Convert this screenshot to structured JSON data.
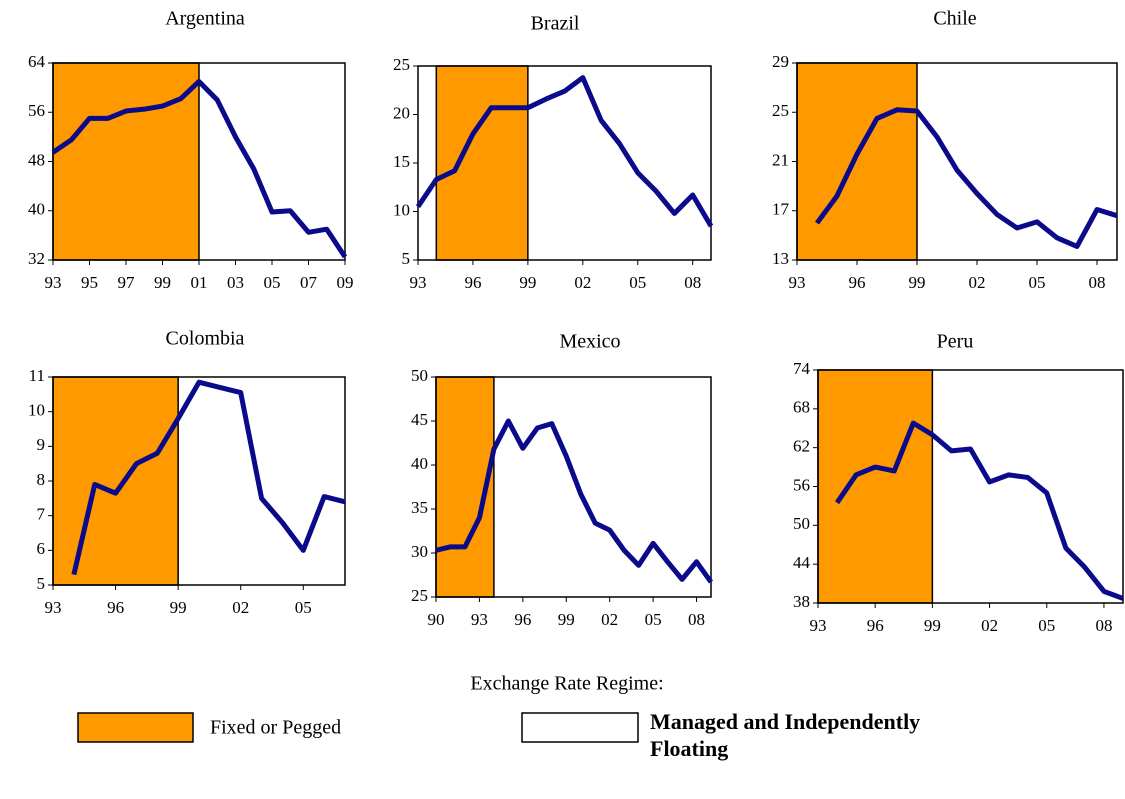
{
  "chart_data": [
    {
      "type": "line",
      "title": "Argentina",
      "line_color": "#0a0a8a",
      "shade_color": "#ff9900",
      "shaded_x": [
        1993,
        2001
      ],
      "x": [
        1993,
        1994,
        1995,
        1996,
        1997,
        1998,
        1999,
        2000,
        2001,
        2002,
        2003,
        2004,
        2005,
        2006,
        2007,
        2008,
        2009
      ],
      "values": [
        49.5,
        51.5,
        55,
        55,
        56.2,
        56.5,
        57,
        58.2,
        61,
        58,
        52,
        46.8,
        39.8,
        40,
        36.5,
        37,
        32.5
      ],
      "xlim": [
        1993,
        2009
      ],
      "ylim": [
        32,
        64
      ],
      "yticks": [
        32,
        40,
        48,
        56,
        64
      ],
      "xticks": [
        {
          "value": 1993,
          "label": "93"
        },
        {
          "value": 1995,
          "label": "95"
        },
        {
          "value": 1997,
          "label": "97"
        },
        {
          "value": 1999,
          "label": "99"
        },
        {
          "value": 2001,
          "label": "01"
        },
        {
          "value": 2003,
          "label": "03"
        },
        {
          "value": 2005,
          "label": "05"
        },
        {
          "value": 2007,
          "label": "07"
        },
        {
          "value": 2009,
          "label": "09"
        }
      ]
    },
    {
      "type": "line",
      "title": "Brazil",
      "line_color": "#0a0a8a",
      "shade_color": "#ff9900",
      "shaded_x": [
        1994,
        1999
      ],
      "x": [
        1993,
        1994,
        1995,
        1996,
        1997,
        1998,
        1999,
        2000,
        2001,
        2002,
        2003,
        2004,
        2005,
        2006,
        2007,
        2008,
        2009
      ],
      "values": [
        10.5,
        13.3,
        14.2,
        18,
        20.7,
        20.7,
        20.7,
        21.6,
        22.4,
        23.8,
        19.4,
        17,
        14,
        12.1,
        9.8,
        11.7,
        8.5
      ],
      "xlim": [
        1993,
        2009
      ],
      "ylim": [
        5,
        25
      ],
      "yticks": [
        5,
        10,
        15,
        20,
        25
      ],
      "xticks": [
        {
          "value": 1993,
          "label": "93"
        },
        {
          "value": 1996,
          "label": "96"
        },
        {
          "value": 1999,
          "label": "99"
        },
        {
          "value": 2002,
          "label": "02"
        },
        {
          "value": 2005,
          "label": "05"
        },
        {
          "value": 2008,
          "label": "08"
        }
      ]
    },
    {
      "type": "line",
      "title": "Chile",
      "line_color": "#0a0a8a",
      "shade_color": "#ff9900",
      "shaded_x": [
        1993,
        1999
      ],
      "x": [
        1994,
        1995,
        1996,
        1997,
        1998,
        1999,
        2000,
        2001,
        2002,
        2003,
        2004,
        2005,
        2006,
        2007,
        2008,
        2009
      ],
      "values": [
        16,
        18.2,
        21.6,
        24.5,
        25.2,
        25.1,
        23,
        20.3,
        18.4,
        16.7,
        15.6,
        16.1,
        14.8,
        14.1,
        17.1,
        16.6
      ],
      "xlim": [
        1993,
        2009
      ],
      "ylim": [
        13,
        29
      ],
      "yticks": [
        13,
        17,
        21,
        25,
        29
      ],
      "xticks": [
        {
          "value": 1993,
          "label": "93"
        },
        {
          "value": 1996,
          "label": "96"
        },
        {
          "value": 1999,
          "label": "99"
        },
        {
          "value": 2002,
          "label": "02"
        },
        {
          "value": 2005,
          "label": "05"
        },
        {
          "value": 2008,
          "label": "08"
        }
      ]
    },
    {
      "type": "line",
      "title": "Colombia",
      "line_color": "#0a0a8a",
      "shade_color": "#ff9900",
      "shaded_x": [
        1993,
        1999
      ],
      "x": [
        1994,
        1995,
        1996,
        1997,
        1998,
        1999,
        2000,
        2001,
        2002,
        2003,
        2004,
        2005,
        2006,
        2007
      ],
      "values": [
        5.3,
        7.9,
        7.65,
        8.5,
        8.8,
        9.8,
        10.85,
        10.7,
        10.55,
        7.5,
        6.8,
        6,
        7.55,
        7.4
      ],
      "xlim": [
        1993,
        2007
      ],
      "ylim": [
        5,
        11
      ],
      "yticks": [
        5,
        6,
        7,
        8,
        9,
        10,
        11
      ],
      "xticks": [
        {
          "value": 1993,
          "label": "93"
        },
        {
          "value": 1996,
          "label": "96"
        },
        {
          "value": 1999,
          "label": "99"
        },
        {
          "value": 2002,
          "label": "02"
        },
        {
          "value": 2005,
          "label": "05"
        }
      ]
    },
    {
      "type": "line",
      "title": "Mexico",
      "line_color": "#0a0a8a",
      "shade_color": "#ff9900",
      "shaded_x": [
        1990,
        1994
      ],
      "x": [
        1990,
        1991,
        1992,
        1993,
        1994,
        1995,
        1996,
        1997,
        1998,
        1999,
        2000,
        2001,
        2002,
        2003,
        2004,
        2005,
        2006,
        2007,
        2008,
        2009
      ],
      "values": [
        30.3,
        30.7,
        30.7,
        34,
        41.8,
        45,
        41.9,
        44.2,
        44.7,
        41,
        36.7,
        33.4,
        32.6,
        30.3,
        28.6,
        31.1,
        29,
        27,
        29,
        26.7
      ],
      "xlim": [
        1990,
        2009
      ],
      "ylim": [
        25,
        50
      ],
      "yticks": [
        25,
        30,
        35,
        40,
        45,
        50
      ],
      "xticks": [
        {
          "value": 1990,
          "label": "90"
        },
        {
          "value": 1993,
          "label": "93"
        },
        {
          "value": 1996,
          "label": "96"
        },
        {
          "value": 1999,
          "label": "99"
        },
        {
          "value": 2002,
          "label": "02"
        },
        {
          "value": 2005,
          "label": "05"
        },
        {
          "value": 2008,
          "label": "08"
        }
      ]
    },
    {
      "type": "line",
      "title": "Peru",
      "line_color": "#0a0a8a",
      "shade_color": "#ff9900",
      "shaded_x": [
        1993,
        1999
      ],
      "x": [
        1994,
        1995,
        1996,
        1997,
        1998,
        1999,
        2000,
        2001,
        2002,
        2003,
        2004,
        2005,
        2006,
        2007,
        2008,
        2009
      ],
      "values": [
        53.5,
        57.8,
        59,
        58.4,
        65.8,
        64,
        61.5,
        61.8,
        56.7,
        57.8,
        57.4,
        55,
        46.5,
        43.5,
        39.8,
        38.7
      ],
      "xlim": [
        1993,
        2009
      ],
      "ylim": [
        38,
        74
      ],
      "yticks": [
        38,
        44,
        50,
        56,
        62,
        68,
        74
      ],
      "xticks": [
        {
          "value": 1993,
          "label": "93"
        },
        {
          "value": 1996,
          "label": "96"
        },
        {
          "value": 1999,
          "label": "99"
        },
        {
          "value": 2002,
          "label": "02"
        },
        {
          "value": 2005,
          "label": "05"
        },
        {
          "value": 2008,
          "label": "08"
        }
      ]
    }
  ],
  "legend": {
    "title": "Exchange Rate Regime:",
    "items": [
      {
        "label": "Fixed or Pegged",
        "color": "#ff9900"
      },
      {
        "label": "Managed and Independently Floating",
        "color": "#ffffff"
      }
    ]
  }
}
